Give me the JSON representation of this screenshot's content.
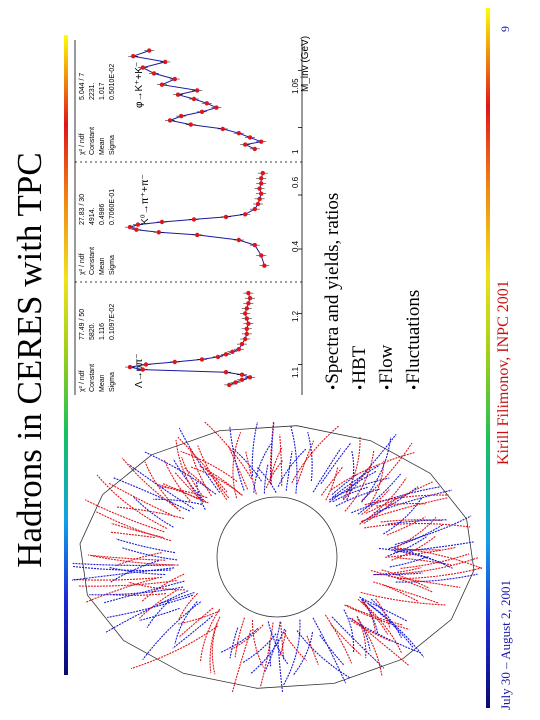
{
  "slide": {
    "title": "Hadrons in CERES with TPC",
    "bullets": [
      "Spectra and yields, ratios",
      "HBT",
      "Flow",
      "Fluctuations"
    ],
    "footer": {
      "date": "July 30 – August 2, 2001",
      "author": "Kirill Filimonov, INPC 2001",
      "page": "9"
    }
  },
  "colors": {
    "track_red": "#e0141b",
    "track_blue": "#1a1ad8",
    "fit_line": "#1a1aa0",
    "data_point": "#e0141b",
    "footer_blue": "#1a1aa8",
    "footer_red": "#c81010"
  },
  "fit_boxes": [
    {
      "chi2": "χ² / ndf",
      "chi2_val": "77.49  /  50",
      "rows": [
        [
          "Constant",
          "5820."
        ],
        [
          "Mean",
          "1.116"
        ],
        [
          "Sigma",
          "0.1097E-02"
        ]
      ]
    },
    {
      "chi2": "χ² / ndf",
      "chi2_val": "27.83  /  30",
      "rows": [
        [
          "Constant",
          "4914."
        ],
        [
          "Mean",
          "0.4986"
        ],
        [
          "Sigma",
          "0.7060E-01"
        ]
      ]
    },
    {
      "chi2": "χ² / ndf",
      "chi2_val": "5.044  /  7",
      "rows": [
        [
          "Constant",
          "2231."
        ],
        [
          "Mean",
          "1.017"
        ],
        [
          "Sigma",
          "0.5010E-02"
        ]
      ]
    }
  ],
  "chart_data": {
    "type": "scatter",
    "xlabel": "M_inv (GeV)",
    "panels": [
      {
        "label": "Λ→pπ⁻",
        "x_ticks": [
          "1.1",
          "1.2"
        ],
        "xlim": [
          1.07,
          1.27
        ],
        "points": [
          [
            1.08,
            38
          ],
          [
            1.085,
            34
          ],
          [
            1.09,
            30
          ],
          [
            1.095,
            25
          ],
          [
            1.1,
            30
          ],
          [
            1.105,
            40
          ],
          [
            1.11,
            92
          ],
          [
            1.115,
            100
          ],
          [
            1.12,
            90
          ],
          [
            1.125,
            72
          ],
          [
            1.13,
            55
          ],
          [
            1.135,
            45
          ],
          [
            1.14,
            40
          ],
          [
            1.145,
            36
          ],
          [
            1.15,
            32
          ],
          [
            1.16,
            30
          ],
          [
            1.17,
            28
          ],
          [
            1.18,
            27
          ],
          [
            1.19,
            27
          ],
          [
            1.2,
            26
          ],
          [
            1.21,
            27
          ],
          [
            1.22,
            28
          ],
          [
            1.23,
            27
          ],
          [
            1.24,
            26
          ],
          [
            1.25,
            25
          ],
          [
            1.26,
            26
          ]
        ]
      },
      {
        "label": "K⁰→π⁺+π⁻",
        "x_ticks": [
          "0.4",
          "0.6"
        ],
        "xlim": [
          0.3,
          0.72
        ],
        "points": [
          [
            0.34,
            16
          ],
          [
            0.38,
            18
          ],
          [
            0.42,
            22
          ],
          [
            0.44,
            32
          ],
          [
            0.46,
            58
          ],
          [
            0.47,
            82
          ],
          [
            0.48,
            96
          ],
          [
            0.49,
            100
          ],
          [
            0.5,
            95
          ],
          [
            0.51,
            80
          ],
          [
            0.52,
            60
          ],
          [
            0.53,
            40
          ],
          [
            0.54,
            28
          ],
          [
            0.56,
            22
          ],
          [
            0.58,
            20
          ],
          [
            0.6,
            19
          ],
          [
            0.62,
            18
          ],
          [
            0.64,
            19
          ],
          [
            0.66,
            18
          ],
          [
            0.68,
            18
          ],
          [
            0.7,
            17
          ]
        ]
      },
      {
        "label": "φ→K⁺+K⁻",
        "x_ticks": [
          "1",
          "1.05"
        ],
        "xlim": [
          0.99,
          1.07
        ],
        "points": [
          [
            0.995,
            22
          ],
          [
            0.998,
            28
          ],
          [
            1.0,
            18
          ],
          [
            1.003,
            25
          ],
          [
            1.006,
            32
          ],
          [
            1.009,
            42
          ],
          [
            1.012,
            62
          ],
          [
            1.015,
            75
          ],
          [
            1.018,
            68
          ],
          [
            1.021,
            55
          ],
          [
            1.024,
            46
          ],
          [
            1.027,
            52
          ],
          [
            1.03,
            60
          ],
          [
            1.033,
            70
          ],
          [
            1.036,
            58
          ],
          [
            1.04,
            80
          ],
          [
            1.044,
            72
          ],
          [
            1.048,
            85
          ],
          [
            1.052,
            92
          ],
          [
            1.056,
            78
          ],
          [
            1.06,
            98
          ],
          [
            1.064,
            88
          ]
        ]
      }
    ]
  }
}
